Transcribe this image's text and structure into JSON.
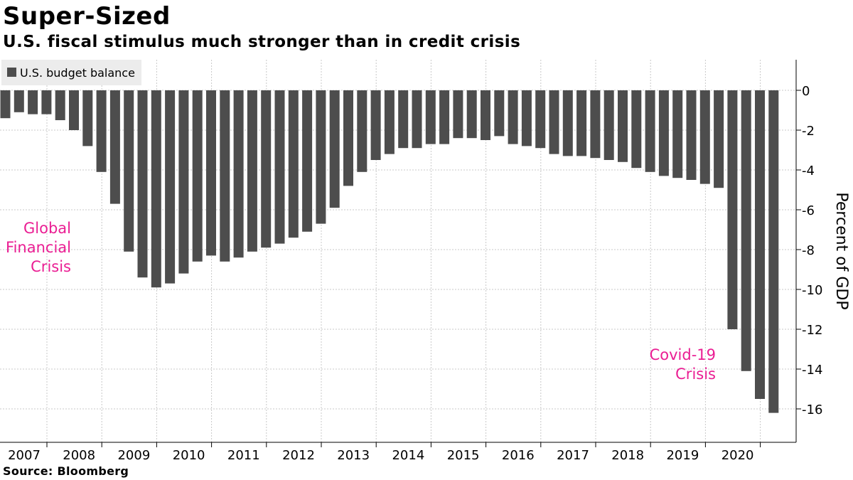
{
  "chart_data": {
    "type": "bar",
    "title": "Super-Sized",
    "subtitle": "U.S. fiscal stimulus much stronger than in credit crisis",
    "source": "Source: Bloomberg",
    "ylabel": "Percent of GDP",
    "xlabel": "",
    "ylim": [
      -17.5,
      1.5
    ],
    "yticks": [
      0,
      -2,
      -4,
      -6,
      -8,
      -10,
      -12,
      -14,
      -16
    ],
    "ytick_labels": [
      "0",
      "-2",
      "-4",
      "-6",
      "-8",
      "-10",
      "-12",
      "-14",
      "-16"
    ],
    "year_labels": [
      "2007",
      "2008",
      "2009",
      "2010",
      "2011",
      "2012",
      "2013",
      "2014",
      "2015",
      "2016",
      "2017",
      "2018",
      "2019",
      "2020"
    ],
    "legend": [
      "U.S. budget balance"
    ],
    "legend_position": "top-left",
    "grid": true,
    "bar_color": "#4d4d4d",
    "annotation_color": "#ea1e93",
    "annotations": [
      {
        "lines": [
          "Global",
          "Financial",
          "Crisis"
        ]
      },
      {
        "lines": [
          "Covid-19",
          "Crisis"
        ]
      }
    ],
    "series": [
      {
        "name": "U.S. budget balance",
        "values": [
          -1.4,
          -1.1,
          -1.2,
          -1.2,
          -1.5,
          -2.0,
          -2.8,
          -4.1,
          -5.7,
          -8.1,
          -9.4,
          -9.9,
          -9.7,
          -9.2,
          -8.6,
          -8.3,
          -8.6,
          -8.4,
          -8.1,
          -7.9,
          -7.7,
          -7.4,
          -7.1,
          -6.7,
          -5.9,
          -4.8,
          -4.1,
          -3.5,
          -3.2,
          -2.9,
          -2.9,
          -2.7,
          -2.7,
          -2.4,
          -2.4,
          -2.5,
          -2.3,
          -2.7,
          -2.8,
          -2.9,
          -3.2,
          -3.3,
          -3.3,
          -3.4,
          -3.5,
          -3.6,
          -3.9,
          -4.1,
          -4.3,
          -4.4,
          -4.5,
          -4.7,
          -4.9,
          -12.0,
          -14.1,
          -15.5,
          -16.2
        ]
      }
    ]
  }
}
